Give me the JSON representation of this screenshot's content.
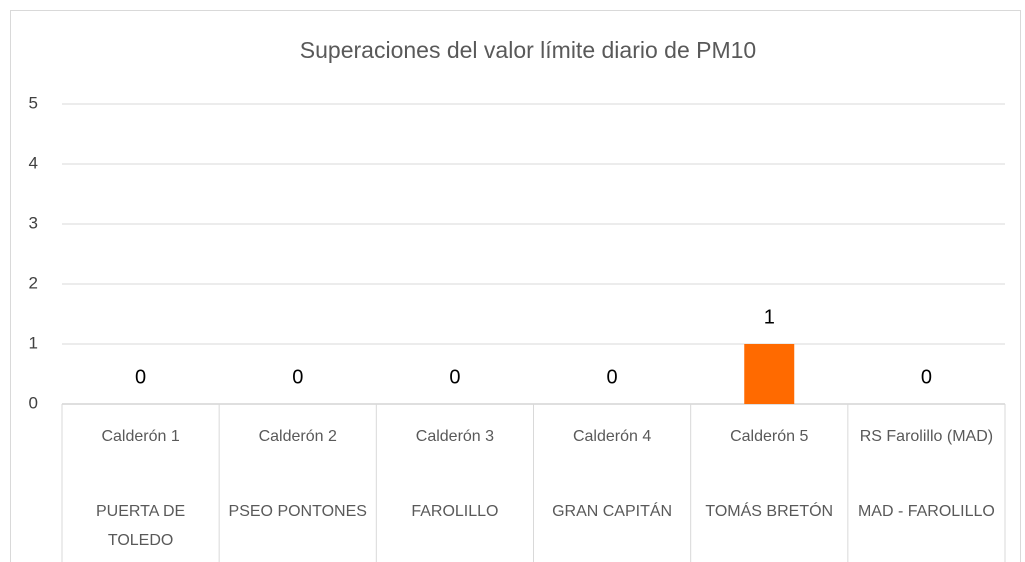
{
  "chart_data": {
    "type": "bar",
    "title": "Superaciones del valor límite diario de PM10",
    "categories": [
      "Calderón 1",
      "Calderón 2",
      "Calderón 3",
      "Calderón 4",
      "Calderón 5",
      "RS Farolillo (MAD)"
    ],
    "subcategories": [
      "PUERTA DE TOLEDO",
      "PSEO PONTONES",
      "FAROLILLO",
      "GRAN CAPITÁN",
      "TOMÁS BRETÓN",
      "MAD - FAROLILLO"
    ],
    "values": [
      0,
      0,
      0,
      0,
      1,
      0
    ],
    "color": "#ff6a00",
    "ylim": [
      0,
      5
    ],
    "yticks": [
      0,
      1,
      2,
      3,
      4,
      5
    ],
    "grid": true
  }
}
